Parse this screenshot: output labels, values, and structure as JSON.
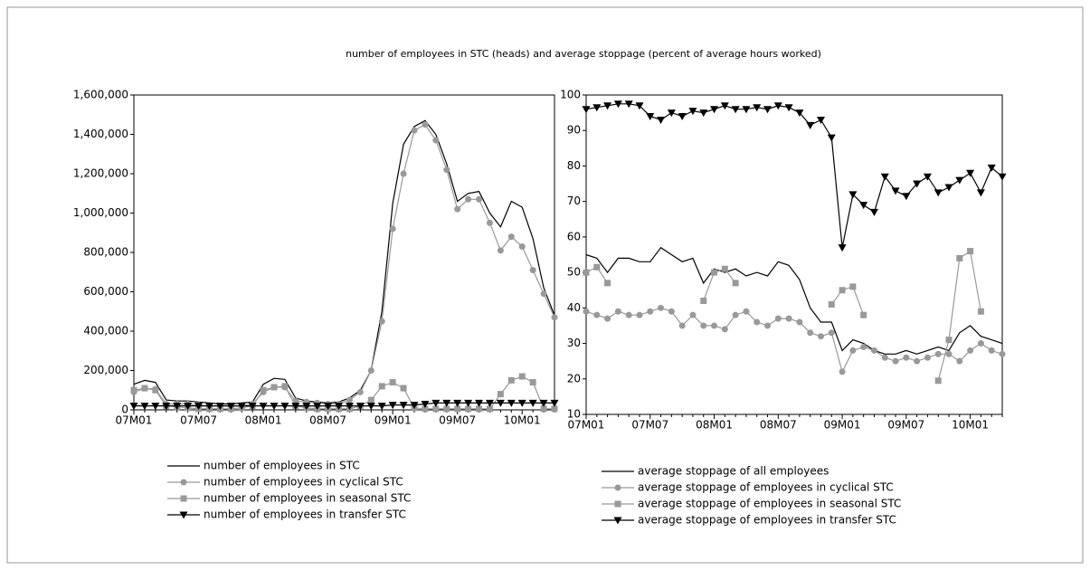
{
  "title": "number of employees in STC (heads) and average stoppage (percent of average hours worked)",
  "chart_data": [
    {
      "type": "line",
      "categories": [
        "07M01",
        null,
        null,
        null,
        null,
        null,
        "07M07",
        null,
        null,
        null,
        null,
        null,
        "08M01",
        null,
        null,
        null,
        null,
        null,
        "08M07",
        null,
        null,
        null,
        null,
        null,
        "09M01",
        null,
        null,
        null,
        null,
        null,
        "09M07",
        null,
        null,
        null,
        null,
        null,
        "10M01",
        null,
        null,
        null
      ],
      "ylim": [
        0,
        1600000
      ],
      "yticks": [
        0,
        {
          "value": 200000,
          "label": "200,000"
        },
        {
          "value": 400000,
          "label": "400,000"
        },
        {
          "value": 600000,
          "label": "600,000"
        },
        {
          "value": 800000,
          "label": "800,000"
        },
        {
          "value": 1000000,
          "label": "1,000,000"
        },
        {
          "value": 1200000,
          "label": "1,200,000"
        },
        {
          "value": 1400000,
          "label": "1,400,000"
        },
        {
          "value": 1600000,
          "label": "1,600,000"
        }
      ],
      "series": [
        {
          "name": "number of employees in STC",
          "color": "#000000",
          "marker": "none",
          "values": [
            130000,
            150000,
            140000,
            50000,
            45000,
            45000,
            40000,
            35000,
            30000,
            30000,
            35000,
            40000,
            130000,
            160000,
            155000,
            60000,
            45000,
            40000,
            35000,
            40000,
            60000,
            100000,
            200000,
            500000,
            1050000,
            1350000,
            1440000,
            1470000,
            1400000,
            1250000,
            1060000,
            1100000,
            1110000,
            1000000,
            930000,
            1060000,
            1030000,
            870000,
            620000,
            480000
          ]
        },
        {
          "name": "number of employees in cyclical STC",
          "color": "#999999",
          "marker": "circle",
          "values": [
            90000,
            110000,
            105000,
            30000,
            30000,
            30000,
            25000,
            20000,
            20000,
            20000,
            20000,
            30000,
            90000,
            115000,
            115000,
            45000,
            40000,
            35000,
            30000,
            30000,
            50000,
            90000,
            200000,
            450000,
            920000,
            1200000,
            1420000,
            1450000,
            1370000,
            1220000,
            1020000,
            1070000,
            1070000,
            950000,
            810000,
            880000,
            830000,
            710000,
            590000,
            470000
          ]
        },
        {
          "name": "number of employees in seasonal STC",
          "color": "#999999",
          "marker": "square",
          "values": [
            100000,
            110000,
            100000,
            20000,
            15000,
            10000,
            5000,
            5000,
            5000,
            5000,
            10000,
            20000,
            100000,
            115000,
            120000,
            20000,
            10000,
            5000,
            5000,
            5000,
            5000,
            20000,
            50000,
            120000,
            140000,
            110000,
            10000,
            5000,
            5000,
            5000,
            5000,
            5000,
            5000,
            5000,
            80000,
            150000,
            170000,
            140000,
            5000,
            5000
          ]
        },
        {
          "name": "number of employees in transfer STC",
          "color": "#000000",
          "marker": "triangle-down",
          "values": [
            20000,
            20000,
            20000,
            20000,
            20000,
            20000,
            20000,
            20000,
            20000,
            20000,
            20000,
            20000,
            20000,
            20000,
            20000,
            20000,
            20000,
            20000,
            20000,
            20000,
            20000,
            20000,
            20000,
            20000,
            25000,
            25000,
            25000,
            30000,
            35000,
            35000,
            35000,
            35000,
            35000,
            35000,
            35000,
            35000,
            35000,
            35000,
            35000,
            35000
          ]
        }
      ]
    },
    {
      "type": "line",
      "categories": [
        "07M01",
        null,
        null,
        null,
        null,
        null,
        "07M07",
        null,
        null,
        null,
        null,
        null,
        "08M01",
        null,
        null,
        null,
        null,
        null,
        "08M07",
        null,
        null,
        null,
        null,
        null,
        "09M01",
        null,
        null,
        null,
        null,
        null,
        "09M07",
        null,
        null,
        null,
        null,
        null,
        "10M01",
        null,
        null,
        null
      ],
      "ylim": [
        10,
        100
      ],
      "yticks": [
        10,
        20,
        30,
        40,
        50,
        60,
        70,
        80,
        90,
        100
      ],
      "series": [
        {
          "name": "average stoppage of all employees",
          "color": "#000000",
          "marker": "none",
          "values": [
            55,
            54,
            50,
            54,
            54,
            53,
            53,
            57,
            55,
            53,
            54,
            47,
            51,
            50,
            51,
            49,
            50,
            49,
            53,
            52,
            48,
            40,
            36,
            36,
            28,
            31,
            30,
            28,
            27,
            27,
            28,
            27,
            28,
            29,
            28,
            33,
            35,
            32,
            31,
            30
          ]
        },
        {
          "name": "average stoppage of employees in cyclical STC",
          "color": "#999999",
          "marker": "circle",
          "values": [
            39,
            38,
            37,
            39,
            38,
            38,
            39,
            40,
            39,
            35,
            38,
            35,
            35,
            34,
            38,
            39,
            36,
            35,
            37,
            37,
            36,
            33,
            32,
            33,
            22,
            28,
            29,
            28,
            26,
            25,
            26,
            25,
            26,
            27,
            27,
            25,
            28,
            30,
            28,
            27
          ]
        },
        {
          "name": "average stoppage of employees in seasonal STC",
          "color": "#999999",
          "marker": "square",
          "values": [
            50,
            51.5,
            47,
            null,
            null,
            null,
            null,
            null,
            null,
            null,
            null,
            42,
            50,
            51,
            47,
            null,
            null,
            null,
            null,
            null,
            null,
            null,
            null,
            41,
            45,
            46,
            38,
            null,
            null,
            null,
            null,
            null,
            null,
            19.5,
            31,
            54,
            56,
            39,
            null,
            null
          ]
        },
        {
          "name": "average stoppage of employees in transfer STC",
          "color": "#000000",
          "marker": "triangle-down",
          "values": [
            96,
            96.5,
            97,
            97.5,
            97.5,
            97,
            94,
            93,
            95,
            94,
            95.5,
            95,
            96,
            97,
            96,
            96,
            96.5,
            96,
            97,
            96.5,
            95,
            91.5,
            93,
            88,
            57,
            72,
            69,
            67,
            77,
            73,
            71.5,
            75,
            77,
            72.5,
            74,
            76,
            78,
            72.5,
            79.5,
            77
          ]
        }
      ]
    }
  ]
}
